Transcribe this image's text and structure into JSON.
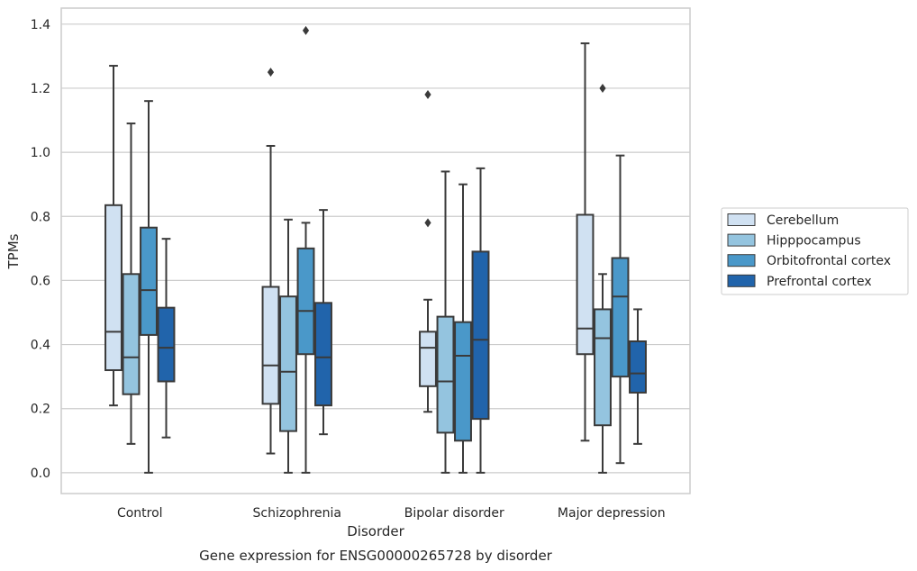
{
  "chart_data": {
    "type": "box",
    "title": "",
    "caption": "Gene expression for ENSG00000265728 by disorder",
    "xlabel": "Disorder",
    "ylabel": "TPMs",
    "ylim": [
      -0.065,
      1.45
    ],
    "yticks": [
      0.0,
      0.2,
      0.4,
      0.6,
      0.8,
      1.0,
      1.2,
      1.4
    ],
    "ytick_labels": [
      "0.0",
      "0.2",
      "0.4",
      "0.6",
      "0.8",
      "1.0",
      "1.2",
      "1.4"
    ],
    "grid": "horizontal",
    "legend_position": "right",
    "categories": [
      "Control",
      "Schizophrenia",
      "Bipolar disorder",
      "Major depression"
    ],
    "series": [
      {
        "name": "Cerebellum",
        "color": "#d0e1f2",
        "boxes": [
          {
            "whislo": 0.21,
            "q1": 0.32,
            "med": 0.44,
            "q3": 0.835,
            "whishi": 1.27,
            "fliers": []
          },
          {
            "whislo": 0.06,
            "q1": 0.215,
            "med": 0.335,
            "q3": 0.58,
            "whishi": 1.02,
            "fliers": [
              1.25
            ]
          },
          {
            "whislo": 0.19,
            "q1": 0.27,
            "med": 0.39,
            "q3": 0.44,
            "whishi": 0.54,
            "fliers": [
              0.78,
              1.18
            ]
          },
          {
            "whislo": 0.1,
            "q1": 0.37,
            "med": 0.45,
            "q3": 0.805,
            "whishi": 1.34,
            "fliers": []
          }
        ]
      },
      {
        "name": "Hipppocampus",
        "color": "#94c4df",
        "boxes": [
          {
            "whislo": 0.09,
            "q1": 0.245,
            "med": 0.36,
            "q3": 0.62,
            "whishi": 1.09,
            "fliers": []
          },
          {
            "whislo": 0.0,
            "q1": 0.13,
            "med": 0.315,
            "q3": 0.55,
            "whishi": 0.79,
            "fliers": []
          },
          {
            "whislo": 0.0,
            "q1": 0.125,
            "med": 0.285,
            "q3": 0.487,
            "whishi": 0.94,
            "fliers": []
          },
          {
            "whislo": 0.0,
            "q1": 0.148,
            "med": 0.42,
            "q3": 0.51,
            "whishi": 0.62,
            "fliers": [
              1.2
            ]
          }
        ]
      },
      {
        "name": "Orbitofrontal cortex",
        "color": "#4a98c9",
        "boxes": [
          {
            "whislo": 0.0,
            "q1": 0.43,
            "med": 0.57,
            "q3": 0.765,
            "whishi": 1.16,
            "fliers": []
          },
          {
            "whislo": 0.0,
            "q1": 0.37,
            "med": 0.505,
            "q3": 0.7,
            "whishi": 0.78,
            "fliers": [
              1.38
            ]
          },
          {
            "whislo": 0.0,
            "q1": 0.1,
            "med": 0.365,
            "q3": 0.47,
            "whishi": 0.9,
            "fliers": []
          },
          {
            "whislo": 0.03,
            "q1": 0.3,
            "med": 0.55,
            "q3": 0.67,
            "whishi": 0.99,
            "fliers": []
          }
        ]
      },
      {
        "name": "Prefrontal cortex",
        "color": "#2164ab",
        "boxes": [
          {
            "whislo": 0.11,
            "q1": 0.285,
            "med": 0.39,
            "q3": 0.515,
            "whishi": 0.73,
            "fliers": []
          },
          {
            "whislo": 0.12,
            "q1": 0.21,
            "med": 0.36,
            "q3": 0.53,
            "whishi": 0.82,
            "fliers": []
          },
          {
            "whislo": 0.0,
            "q1": 0.168,
            "med": 0.415,
            "q3": 0.69,
            "whishi": 0.95,
            "fliers": []
          },
          {
            "whislo": 0.09,
            "q1": 0.25,
            "med": 0.31,
            "q3": 0.41,
            "whishi": 0.51,
            "fliers": []
          }
        ]
      }
    ]
  },
  "colors": {
    "edge": "#3a3a3a",
    "grid": "#cccccc",
    "frame": "#cccccc",
    "text": "#262626"
  }
}
